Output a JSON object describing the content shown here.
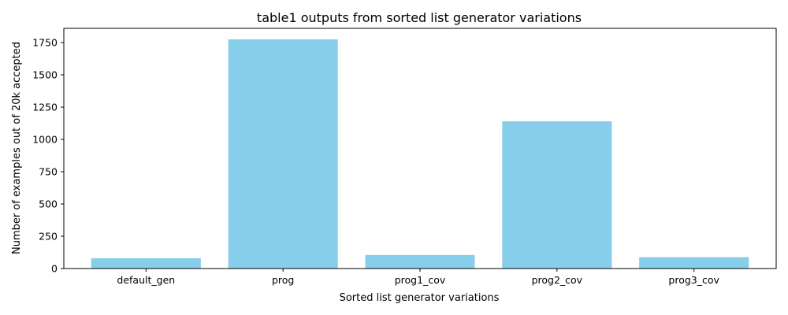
{
  "chart_data": {
    "type": "bar",
    "title": "table1 outputs from sorted list generator variations",
    "xlabel": "Sorted list generator variations",
    "ylabel": "Number of examples out of 20k accepted",
    "categories": [
      "default_gen",
      "prog",
      "prog1_cov",
      "prog2_cov",
      "prog3_cov"
    ],
    "values": [
      80,
      1775,
      105,
      1140,
      88
    ],
    "ylim": [
      0,
      1860
    ],
    "yticks": [
      0,
      250,
      500,
      750,
      1000,
      1250,
      1500,
      1750
    ],
    "grid": false,
    "bar_color": "#87CEEB"
  }
}
